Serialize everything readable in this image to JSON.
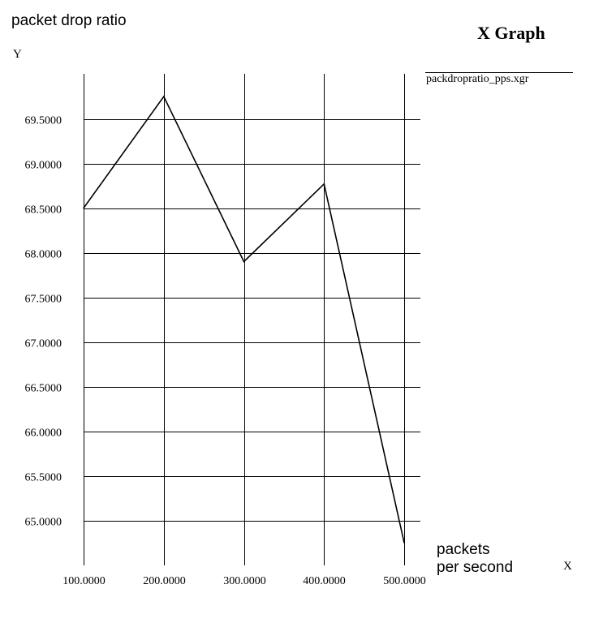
{
  "app": {
    "window_title": "X Graph",
    "legend_file": "packdropratio_pps.xgr"
  },
  "chart_data": {
    "type": "line",
    "title": "X Graph",
    "ylabel": "packet drop ratio",
    "ylabel_axis_letter": "Y",
    "xlabel": "packets\nper second",
    "xlabel_axis_letter": "X",
    "x": [
      100,
      200,
      300,
      400,
      500
    ],
    "x_tick_labels": [
      "100.0000",
      "200.0000",
      "300.0000",
      "400.0000",
      "500.0000"
    ],
    "y_ticks": [
      65.0,
      65.5,
      66.0,
      66.5,
      67.0,
      67.5,
      68.0,
      68.5,
      69.0,
      69.5
    ],
    "y_tick_labels": [
      "65.0000",
      "65.5000",
      "66.0000",
      "66.5000",
      "67.0000",
      "67.5000",
      "68.0000",
      "68.5000",
      "69.0000",
      "69.5000"
    ],
    "series": [
      {
        "name": "packdropratio_pps.xgr",
        "values": [
          68.5,
          69.75,
          67.9,
          68.77,
          64.75
        ],
        "color": "#000000"
      }
    ],
    "xlim": [
      100,
      500
    ],
    "ylim": [
      64.75,
      69.75
    ],
    "grid": true,
    "legend_position": "top-right"
  }
}
